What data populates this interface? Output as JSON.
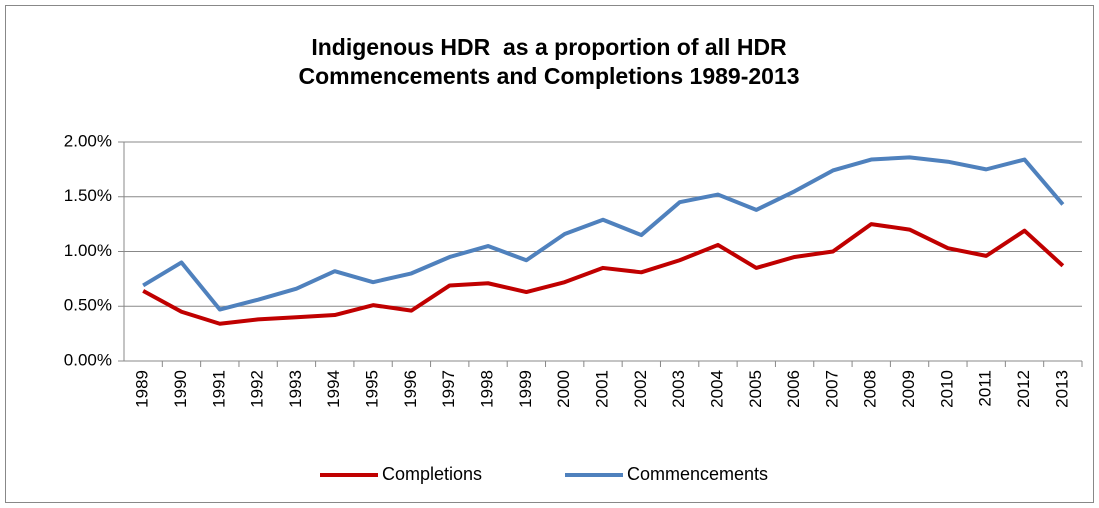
{
  "chart_data": {
    "type": "line",
    "title": [
      "Indigenous HDR  as a proportion of all HDR",
      "Commencements and Completions 1989-2013"
    ],
    "categories": [
      "1989",
      "1990",
      "1991",
      "1992",
      "1993",
      "1994",
      "1995",
      "1996",
      "1997",
      "1998",
      "1999",
      "2000",
      "2001",
      "2002",
      "2003",
      "2004",
      "2005",
      "2006",
      "2007",
      "2008",
      "2009",
      "2010",
      "2011",
      "2012",
      "2013"
    ],
    "series": [
      {
        "name": "Completions",
        "color": "#c00000",
        "values": [
          0.64,
          0.45,
          0.34,
          0.38,
          0.4,
          0.42,
          0.51,
          0.46,
          0.69,
          0.71,
          0.63,
          0.72,
          0.85,
          0.81,
          0.92,
          1.06,
          0.85,
          0.95,
          1.0,
          1.25,
          1.2,
          1.03,
          0.96,
          1.19,
          0.87
        ]
      },
      {
        "name": "Commencements",
        "color": "#4f81bd",
        "values": [
          0.69,
          0.9,
          0.47,
          0.56,
          0.66,
          0.82,
          0.72,
          0.8,
          0.95,
          1.05,
          0.92,
          1.16,
          1.29,
          1.15,
          1.45,
          1.52,
          1.38,
          1.55,
          1.74,
          1.84,
          1.86,
          1.82,
          1.75,
          1.84,
          1.43
        ]
      }
    ],
    "ylim": [
      0,
      2
    ],
    "yticks": [
      {
        "value": 0,
        "label": "0.00%"
      },
      {
        "value": 0.5,
        "label": "0.50%"
      },
      {
        "value": 1,
        "label": "1.00%"
      },
      {
        "value": 1.5,
        "label": "1.50%"
      },
      {
        "value": 2,
        "label": "2.00%"
      }
    ],
    "grid": true,
    "legend": "bottom"
  }
}
